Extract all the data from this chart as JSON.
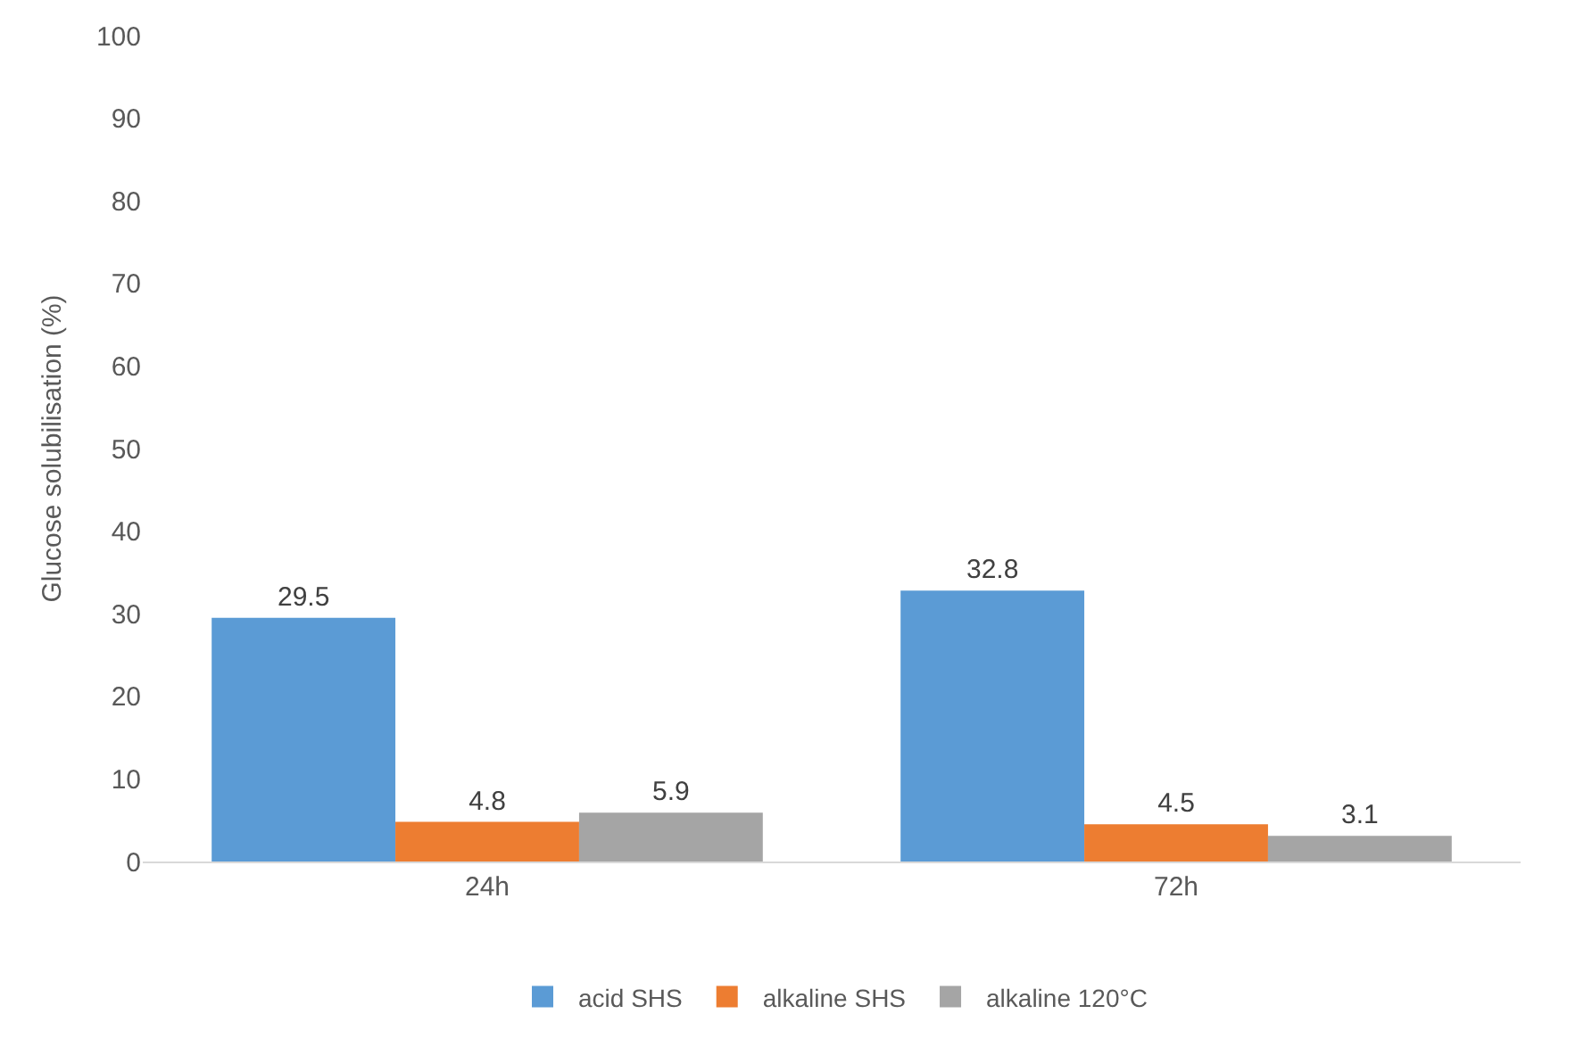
{
  "chart_data": {
    "type": "bar",
    "ylabel": "Glucose solubilisation (%)",
    "categories": [
      "24h",
      "72h"
    ],
    "series": [
      {
        "name": "acid SHS",
        "color": "#5b9bd5",
        "values": [
          29.5,
          32.8
        ]
      },
      {
        "name": "alkaline SHS",
        "color": "#ed7d31",
        "values": [
          4.8,
          4.5
        ]
      },
      {
        "name": "alkaline 120°C",
        "color": "#a5a5a5",
        "values": [
          5.9,
          3.1
        ]
      }
    ],
    "ylim": [
      0,
      100
    ],
    "yticks": [
      0,
      10,
      20,
      30,
      40,
      50,
      60,
      70,
      80,
      90,
      100
    ],
    "data_labels": true,
    "legend": "bottom",
    "grid": false
  }
}
